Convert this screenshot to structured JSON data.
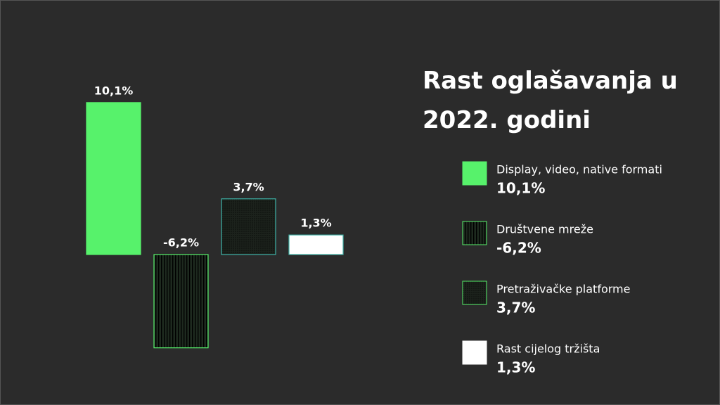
{
  "chart_data": {
    "type": "bar",
    "title": "Rast oglašavanja u 2022. godini",
    "categories": [
      "Display, video, native formati",
      "Društvene mreže",
      "Pretraživačke platforme",
      "Rast cijelog tržišta"
    ],
    "values": [
      10.1,
      -6.2,
      3.7,
      1.3
    ],
    "value_labels": [
      "10,1%",
      "-6,2%",
      "3,7%",
      "1,3%"
    ],
    "colors": [
      "#57f26b",
      "#57f26b",
      "#57f26b",
      "#ffffff"
    ],
    "patterns": [
      "solid",
      "vertical-lines",
      "dots",
      "solid"
    ]
  }
}
